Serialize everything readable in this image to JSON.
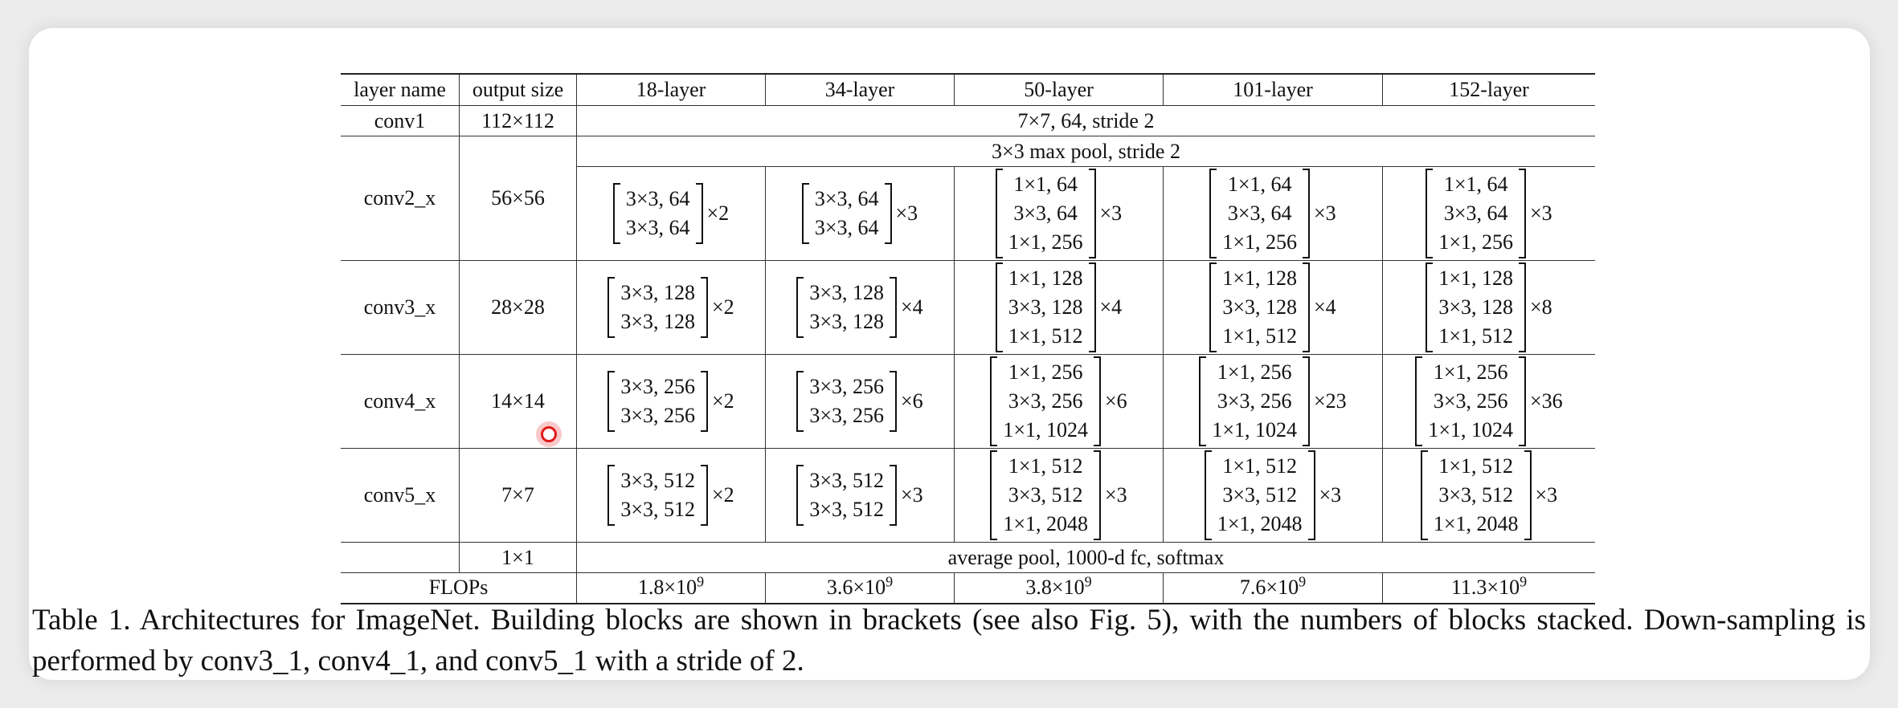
{
  "table": {
    "headers": [
      "layer name",
      "output size",
      "18-layer",
      "34-layer",
      "50-layer",
      "101-layer",
      "152-layer"
    ],
    "conv1": {
      "name": "conv1",
      "size": "112×112",
      "desc": "7×7, 64, stride 2"
    },
    "pool": {
      "desc": "3×3 max pool, stride 2"
    },
    "conv2": {
      "name": "conv2_x",
      "size": "56×56",
      "b18": [
        "3×3, 64",
        "3×3, 64"
      ],
      "m18": "×2",
      "b34": [
        "3×3, 64",
        "3×3, 64"
      ],
      "m34": "×3",
      "b50": [
        "1×1, 64",
        "3×3, 64",
        "1×1, 256"
      ],
      "m50": "×3",
      "b101": [
        "1×1, 64",
        "3×3, 64",
        "1×1, 256"
      ],
      "m101": "×3",
      "b152": [
        "1×1, 64",
        "3×3, 64",
        "1×1, 256"
      ],
      "m152": "×3"
    },
    "conv3": {
      "name": "conv3_x",
      "size": "28×28",
      "b18": [
        "3×3, 128",
        "3×3, 128"
      ],
      "m18": "×2",
      "b34": [
        "3×3, 128",
        "3×3, 128"
      ],
      "m34": "×4",
      "b50": [
        "1×1, 128",
        "3×3, 128",
        "1×1, 512"
      ],
      "m50": "×4",
      "b101": [
        "1×1, 128",
        "3×3, 128",
        "1×1, 512"
      ],
      "m101": "×4",
      "b152": [
        "1×1, 128",
        "3×3, 128",
        "1×1, 512"
      ],
      "m152": "×8"
    },
    "conv4": {
      "name": "conv4_x",
      "size": "14×14",
      "b18": [
        "3×3, 256",
        "3×3, 256"
      ],
      "m18": "×2",
      "b34": [
        "3×3, 256",
        "3×3, 256"
      ],
      "m34": "×6",
      "b50": [
        "1×1, 256",
        "3×3, 256",
        "1×1, 1024"
      ],
      "m50": "×6",
      "b101": [
        "1×1, 256",
        "3×3, 256",
        "1×1, 1024"
      ],
      "m101": "×23",
      "b152": [
        "1×1, 256",
        "3×3, 256",
        "1×1, 1024"
      ],
      "m152": "×36"
    },
    "conv5": {
      "name": "conv5_x",
      "size": "7×7",
      "b18": [
        "3×3, 512",
        "3×3, 512"
      ],
      "m18": "×2",
      "b34": [
        "3×3, 512",
        "3×3, 512"
      ],
      "m34": "×3",
      "b50": [
        "1×1, 512",
        "3×3, 512",
        "1×1, 2048"
      ],
      "m50": "×3",
      "b101": [
        "1×1, 512",
        "3×3, 512",
        "1×1, 2048"
      ],
      "m101": "×3",
      "b152": [
        "1×1, 512",
        "3×3, 512",
        "1×1, 2048"
      ],
      "m152": "×3"
    },
    "final": {
      "size": "1×1",
      "desc": "average pool, 1000-d fc, softmax"
    },
    "flops": {
      "label": "FLOPs",
      "values": [
        {
          "base": "1.8×10",
          "exp": "9"
        },
        {
          "base": "3.6×10",
          "exp": "9"
        },
        {
          "base": "3.8×10",
          "exp": "9"
        },
        {
          "base": "7.6×10",
          "exp": "9"
        },
        {
          "base": "11.3×10",
          "exp": "9"
        }
      ]
    }
  },
  "caption": "Table 1. Architectures for ImageNet. Building blocks are shown in brackets (see also Fig. 5), with the numbers of blocks stacked. Down-sampling is performed by conv3_1, conv4_1, and conv5_1 with a stride of 2."
}
